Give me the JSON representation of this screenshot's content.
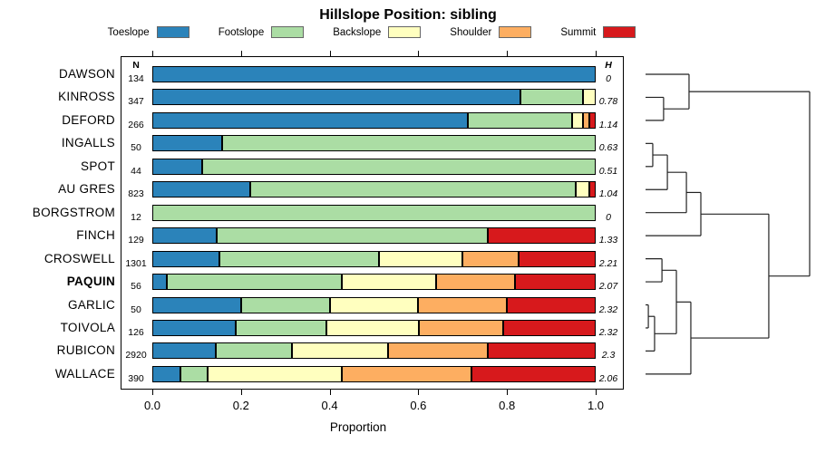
{
  "title": "Hillslope Position: sibling",
  "legend": {
    "items": [
      {
        "label": "Toeslope",
        "color": "#2B83BA"
      },
      {
        "label": "Footslope",
        "color": "#ABDDA4"
      },
      {
        "label": "Backslope",
        "color": "#FFFFBF"
      },
      {
        "label": "Shoulder",
        "color": "#FDAE61"
      },
      {
        "label": "Summit",
        "color": "#D7191C"
      }
    ]
  },
  "columns": {
    "n_header": "N",
    "h_header": "H"
  },
  "axis": {
    "label": "Proportion",
    "tick_labels": [
      "0.0",
      "0.2",
      "0.4",
      "0.6",
      "0.8",
      "1.0"
    ],
    "tick_values": [
      0,
      0.2,
      0.4,
      0.6,
      0.8,
      1.0
    ],
    "range": [
      0,
      1
    ]
  },
  "chart_data": {
    "type": "bar",
    "orientation": "horizontal-stacked",
    "title": "Hillslope Position: sibling",
    "xlabel": "Proportion",
    "xlim": [
      0,
      1
    ],
    "grid": false,
    "legend_position": "top",
    "stack_order": [
      "Toeslope",
      "Footslope",
      "Backslope",
      "Shoulder",
      "Summit"
    ],
    "colors": {
      "Toeslope": "#2B83BA",
      "Footslope": "#ABDDA4",
      "Backslope": "#FFFFBF",
      "Shoulder": "#FDAE61",
      "Summit": "#D7191C"
    },
    "rows": [
      {
        "label": "DAWSON",
        "bold": false,
        "n": "134",
        "h": "0",
        "values": [
          1,
          0,
          0,
          0,
          0
        ]
      },
      {
        "label": "KINROSS",
        "bold": false,
        "n": "347",
        "h": "0.78",
        "values": [
          0.83,
          0.141,
          0.029,
          0,
          0
        ]
      },
      {
        "label": "DEFORD",
        "bold": false,
        "n": "266",
        "h": "1.14",
        "values": [
          0.712,
          0.235,
          0.024,
          0.015,
          0.014
        ]
      },
      {
        "label": "INGALLS",
        "bold": false,
        "n": "50",
        "h": "0.63",
        "values": [
          0.158,
          0.842,
          0,
          0,
          0
        ]
      },
      {
        "label": "SPOT",
        "bold": false,
        "n": "44",
        "h": "0.51",
        "values": [
          0.112,
          0.888,
          0,
          0,
          0
        ]
      },
      {
        "label": "AU GRES",
        "bold": false,
        "n": "823",
        "h": "1.04",
        "values": [
          0.221,
          0.734,
          0.031,
          0,
          0.014
        ]
      },
      {
        "label": "BORGSTROM",
        "bold": false,
        "n": "12",
        "h": "0",
        "values": [
          0,
          1,
          0,
          0,
          0
        ]
      },
      {
        "label": "FINCH",
        "bold": false,
        "n": "129",
        "h": "1.33",
        "values": [
          0.145,
          0.612,
          0,
          0,
          0.243
        ]
      },
      {
        "label": "CROSWELL",
        "bold": false,
        "n": "1301",
        "h": "2.21",
        "values": [
          0.151,
          0.36,
          0.188,
          0.127,
          0.174
        ]
      },
      {
        "label": "PAQUIN",
        "bold": true,
        "n": "56",
        "h": "2.07",
        "values": [
          0.033,
          0.394,
          0.213,
          0.178,
          0.182
        ]
      },
      {
        "label": "GARLIC",
        "bold": false,
        "n": "50",
        "h": "2.32",
        "values": [
          0.2,
          0.2,
          0.2,
          0.2,
          0.2
        ]
      },
      {
        "label": "TOIVOLA",
        "bold": false,
        "n": "126",
        "h": "2.32",
        "values": [
          0.188,
          0.205,
          0.208,
          0.19,
          0.209
        ]
      },
      {
        "label": "RUBICON",
        "bold": false,
        "n": "2920",
        "h": "2.3",
        "values": [
          0.143,
          0.172,
          0.217,
          0.225,
          0.243
        ]
      },
      {
        "label": "WALLACE",
        "bold": false,
        "n": "390",
        "h": "2.06",
        "values": [
          0.063,
          0.062,
          0.302,
          0.293,
          0.28
        ]
      }
    ],
    "dendrogram": {
      "note": "segments in [height1,row1,height2,row2] units; height 0=leaf edge, 1=root; row 1..14 top to bottom",
      "height_range": [
        0,
        1
      ],
      "segments": [
        [
          0,
          1,
          0.265,
          1
        ],
        [
          0,
          2,
          0.11,
          2
        ],
        [
          0,
          3,
          0.11,
          3
        ],
        [
          0,
          4,
          0.044,
          4
        ],
        [
          0,
          5,
          0.044,
          5
        ],
        [
          0,
          6,
          0.133,
          6
        ],
        [
          0,
          7,
          0.249,
          7
        ],
        [
          0,
          8,
          0.337,
          8
        ],
        [
          0,
          9,
          0.1,
          9
        ],
        [
          0,
          10,
          0.1,
          10
        ],
        [
          0,
          11,
          0.017,
          11
        ],
        [
          0,
          12,
          0.017,
          12
        ],
        [
          0,
          13,
          0.055,
          13
        ],
        [
          0,
          14,
          0.276,
          14
        ],
        [
          0.11,
          2,
          0.11,
          3
        ],
        [
          0.265,
          1,
          0.265,
          2.5
        ],
        [
          0.044,
          4,
          0.044,
          5
        ],
        [
          0.133,
          4.5,
          0.133,
          6
        ],
        [
          0.249,
          5.25,
          0.249,
          7
        ],
        [
          0.337,
          6.125,
          0.337,
          8
        ],
        [
          0.1,
          9,
          0.1,
          10
        ],
        [
          0.017,
          11,
          0.017,
          12
        ],
        [
          0.055,
          11.5,
          0.055,
          13
        ],
        [
          0.188,
          9.5,
          0.188,
          12.25
        ],
        [
          0.276,
          10.875,
          0.276,
          14
        ],
        [
          0.751,
          7.0625,
          0.751,
          12.4375
        ],
        [
          1.0,
          1.75,
          1.0,
          9.75
        ],
        [
          0.11,
          2.5,
          0.265,
          2.5
        ],
        [
          0.265,
          1.75,
          1.0,
          1.75
        ],
        [
          0.044,
          4.5,
          0.133,
          4.5
        ],
        [
          0.133,
          5.25,
          0.249,
          5.25
        ],
        [
          0.249,
          6.125,
          0.337,
          6.125
        ],
        [
          0.337,
          7.0625,
          0.751,
          7.0625
        ],
        [
          0.1,
          9.5,
          0.188,
          9.5
        ],
        [
          0.017,
          11.5,
          0.055,
          11.5
        ],
        [
          0.055,
          12.25,
          0.188,
          12.25
        ],
        [
          0.188,
          10.875,
          0.276,
          10.875
        ],
        [
          0.276,
          12.4375,
          0.751,
          12.4375
        ],
        [
          0.751,
          9.75,
          1.0,
          9.75
        ]
      ]
    }
  }
}
